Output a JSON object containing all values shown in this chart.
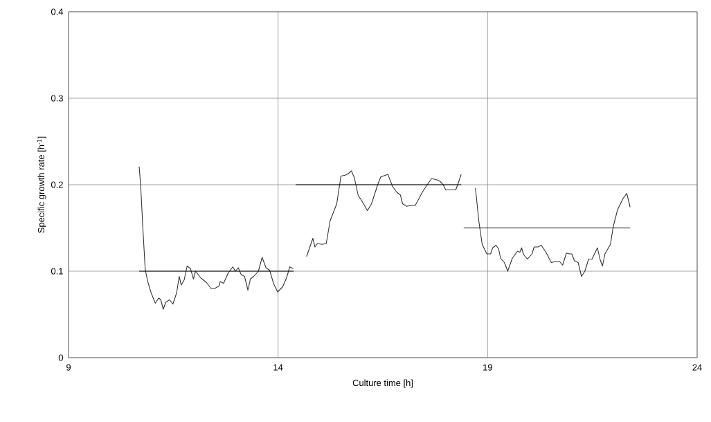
{
  "chart_data": {
    "type": "line",
    "xlabel": "Culture time [h]",
    "ylabel": "Specific growth rate [h$^{-1}$]",
    "xlim": [
      9,
      24
    ],
    "xticks": [
      9,
      14,
      19,
      24
    ],
    "ylim": [
      0,
      0.4
    ],
    "yticks": [
      0,
      0.1,
      0.2,
      0.3,
      0.4
    ],
    "grid": true,
    "marker": "none",
    "line_style": "solid",
    "series": [
      {
        "color": "#333333",
        "x": [
          10.685,
          10.72,
          10.78,
          10.83,
          10.89,
          10.97,
          11.07,
          11.15,
          11.2,
          11.26,
          11.32,
          11.41,
          11.49,
          11.58,
          11.64,
          11.69,
          11.76,
          11.83,
          11.91,
          11.98,
          12.03,
          12.16,
          12.29,
          12.4,
          12.49,
          12.59,
          12.62,
          12.7,
          12.81,
          12.92,
          12.98,
          13.05,
          13.12,
          13.2,
          13.28,
          13.34,
          13.42,
          13.53,
          13.62,
          13.71,
          13.8,
          13.89,
          13.99,
          14.11,
          14.2,
          14.28,
          14.36
        ],
        "values": [
          0.221,
          0.2,
          0.144,
          0.102,
          0.088,
          0.075,
          0.063,
          0.069,
          0.067,
          0.056,
          0.064,
          0.067,
          0.062,
          0.075,
          0.094,
          0.084,
          0.09,
          0.106,
          0.103,
          0.091,
          0.1,
          0.092,
          0.087,
          0.08,
          0.08,
          0.083,
          0.088,
          0.086,
          0.098,
          0.105,
          0.1,
          0.104,
          0.096,
          0.094,
          0.078,
          0.091,
          0.094,
          0.1,
          0.116,
          0.104,
          0.101,
          0.086,
          0.076,
          0.082,
          0.092,
          0.105,
          0.103
        ]
      },
      {
        "color": "#333333",
        "x": [
          14.68,
          14.83,
          14.88,
          14.94,
          15.05,
          15.15,
          15.24,
          15.4,
          15.5,
          15.6,
          15.68,
          15.75,
          15.82,
          15.91,
          16.04,
          16.13,
          16.23,
          16.37,
          16.45,
          16.62,
          16.73,
          16.84,
          16.92,
          16.97,
          17.07,
          17.16,
          17.27,
          17.34,
          17.45,
          17.56,
          17.66,
          17.77,
          17.86,
          17.94,
          18.0,
          18.1,
          18.24,
          18.3,
          18.37
        ],
        "values": [
          0.117,
          0.138,
          0.128,
          0.132,
          0.131,
          0.132,
          0.158,
          0.178,
          0.21,
          0.211,
          0.213,
          0.216,
          0.208,
          0.188,
          0.178,
          0.17,
          0.178,
          0.199,
          0.209,
          0.212,
          0.198,
          0.191,
          0.188,
          0.178,
          0.175,
          0.176,
          0.176,
          0.182,
          0.192,
          0.2,
          0.207,
          0.206,
          0.204,
          0.2,
          0.194,
          0.194,
          0.194,
          0.202,
          0.212
        ]
      },
      {
        "color": "#333333",
        "x": [
          18.71,
          18.79,
          18.87,
          18.98,
          19.07,
          19.12,
          19.2,
          19.26,
          19.31,
          19.4,
          19.48,
          19.59,
          19.71,
          19.77,
          19.81,
          19.86,
          19.95,
          20.06,
          20.11,
          20.2,
          20.28,
          20.39,
          20.52,
          20.61,
          20.72,
          20.79,
          20.88,
          20.95,
          21.01,
          21.07,
          21.16,
          21.24,
          21.32,
          21.41,
          21.49,
          21.62,
          21.68,
          21.74,
          21.8,
          21.93,
          22.0,
          22.1,
          22.23,
          22.32,
          22.4
        ],
        "values": [
          0.196,
          0.158,
          0.131,
          0.12,
          0.12,
          0.127,
          0.13,
          0.126,
          0.115,
          0.11,
          0.1,
          0.115,
          0.123,
          0.122,
          0.127,
          0.119,
          0.114,
          0.12,
          0.128,
          0.128,
          0.13,
          0.122,
          0.11,
          0.111,
          0.111,
          0.107,
          0.121,
          0.12,
          0.12,
          0.112,
          0.11,
          0.094,
          0.1,
          0.114,
          0.114,
          0.127,
          0.114,
          0.106,
          0.12,
          0.131,
          0.152,
          0.171,
          0.184,
          0.19,
          0.174
        ]
      },
      {
        "color": "#000000",
        "x": [
          10.685,
          14.37
        ],
        "values": [
          0.1,
          0.1
        ]
      },
      {
        "color": "#000000",
        "x": [
          14.42,
          18.37
        ],
        "values": [
          0.2,
          0.2
        ]
      },
      {
        "color": "#000000",
        "x": [
          18.43,
          22.4
        ],
        "values": [
          0.15,
          0.15
        ]
      }
    ]
  }
}
